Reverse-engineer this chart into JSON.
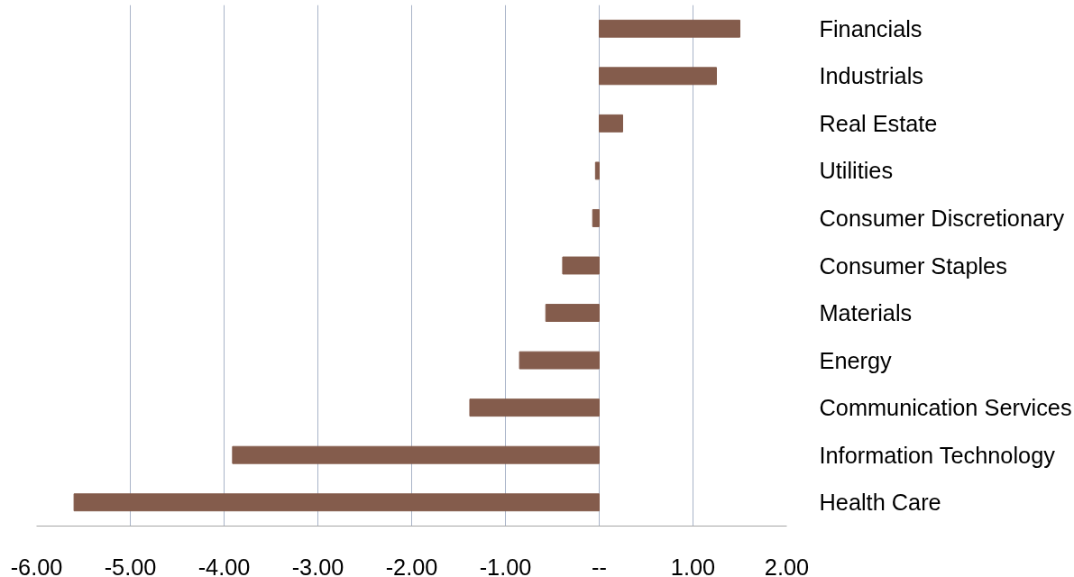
{
  "chart_data": {
    "type": "bar",
    "orientation": "horizontal",
    "categories": [
      "Financials",
      "Industrials",
      "Real Estate",
      "Utilities",
      "Consumer Discretionary",
      "Consumer Staples",
      "Materials",
      "Energy",
      "Communication Services",
      "Information Technology",
      "Health Care"
    ],
    "values": [
      1.5,
      1.25,
      0.25,
      -0.04,
      -0.07,
      -0.39,
      -0.57,
      -0.85,
      -1.38,
      -3.91,
      -5.6
    ],
    "color": "#845c4c",
    "xlim": [
      -6,
      2
    ],
    "xticks": [
      {
        "value": -6,
        "label": "-6.00"
      },
      {
        "value": -5,
        "label": "-5.00"
      },
      {
        "value": -4,
        "label": "-4.00"
      },
      {
        "value": -3,
        "label": "-3.00"
      },
      {
        "value": -2,
        "label": "-2.00"
      },
      {
        "value": -1,
        "label": "-1.00"
      },
      {
        "value": 0,
        "label": "--"
      },
      {
        "value": 1,
        "label": "1.00"
      },
      {
        "value": 2,
        "label": "2.00"
      }
    ],
    "grid": "x"
  }
}
